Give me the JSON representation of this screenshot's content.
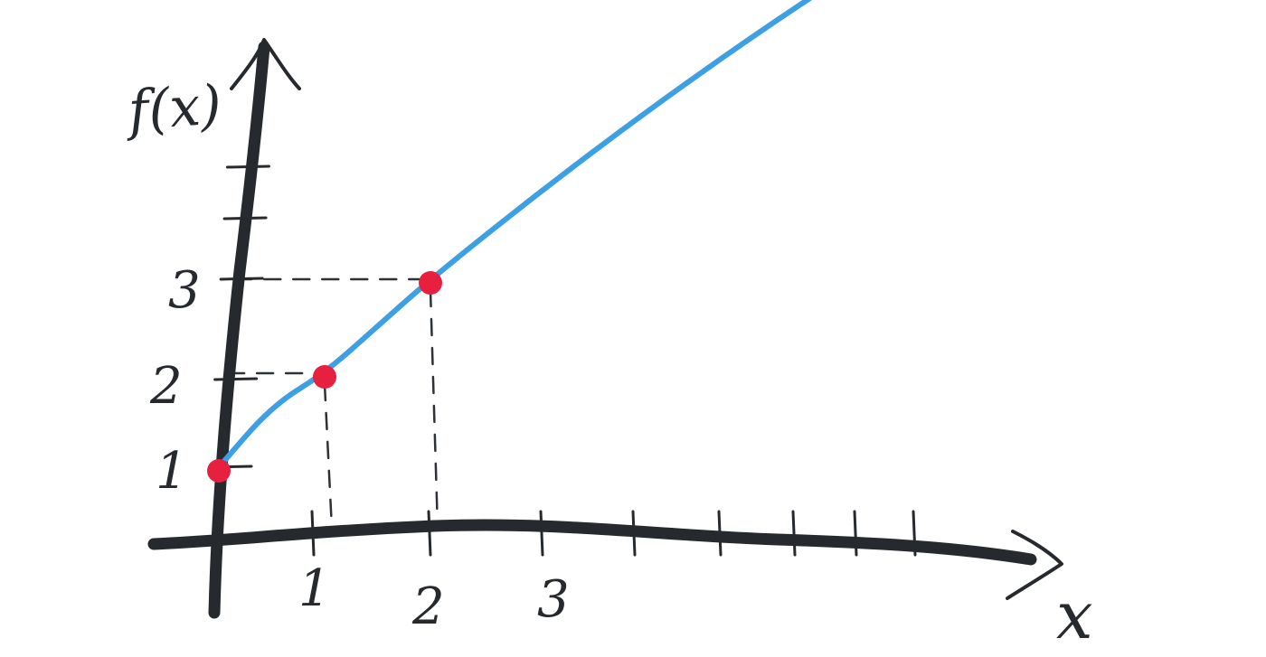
{
  "chart_data": {
    "type": "line",
    "x_axis_label": "x",
    "y_axis_label": "f(x)",
    "x_ticks": [
      1,
      2,
      3
    ],
    "y_ticks": [
      1,
      2,
      3
    ],
    "x_tick_labels": [
      "1",
      "2",
      "3"
    ],
    "y_tick_labels": [
      "1",
      "2",
      "3"
    ],
    "points": [
      {
        "x": 0,
        "y": 1
      },
      {
        "x": 1,
        "y": 2
      },
      {
        "x": 2,
        "y": 3
      }
    ],
    "curve": [
      {
        "x": 0,
        "y": 1
      },
      {
        "x": 0.5,
        "y": 1.65
      },
      {
        "x": 1,
        "y": 2
      },
      {
        "x": 1.5,
        "y": 2.5
      },
      {
        "x": 2,
        "y": 3
      },
      {
        "x": 3,
        "y": 3.9
      },
      {
        "x": 4,
        "y": 4.75
      },
      {
        "x": 5,
        "y": 5.55
      },
      {
        "x": 6,
        "y": 6.3
      },
      {
        "x": 6.5,
        "y": 6.65
      }
    ],
    "guides_to_axes": true,
    "colors": {
      "axis": "#262a2e",
      "curve": "#3d9fe4",
      "points": "#e8203f"
    }
  }
}
